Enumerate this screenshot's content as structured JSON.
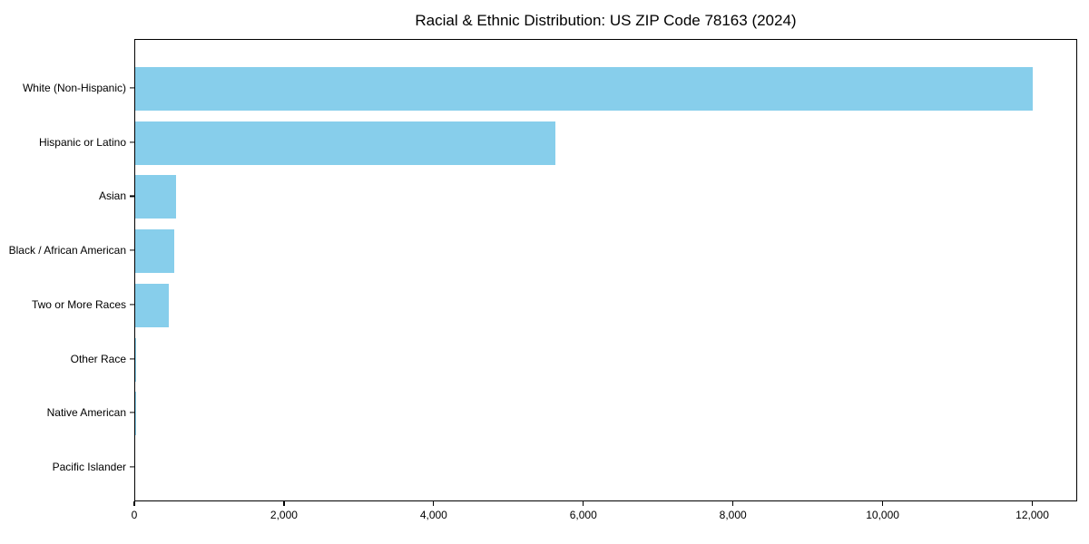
{
  "title": "Racial & Ethnic Distribution: US ZIP Code 78163 (2024)",
  "colors": {
    "bar": "#87CEEB",
    "axis": "#000000",
    "text": "#000000",
    "background": "#ffffff"
  },
  "chart_data": {
    "type": "bar",
    "orientation": "horizontal",
    "title": "Racial & Ethnic Distribution: US ZIP Code 78163 (2024)",
    "xlabel": "",
    "ylabel": "",
    "categories": [
      "White (Non-Hispanic)",
      "Hispanic or Latino",
      "Asian",
      "Black / African American",
      "Two or More Races",
      "Other Race",
      "Native American",
      "Pacific Islander"
    ],
    "values": [
      11990,
      5620,
      545,
      520,
      445,
      15,
      12,
      0
    ],
    "xlim": [
      0,
      12600
    ],
    "xticks": [
      0,
      2000,
      4000,
      6000,
      8000,
      10000,
      12000
    ],
    "xtick_labels": [
      "0",
      "2,000",
      "4,000",
      "6,000",
      "8,000",
      "10,000",
      "12,000"
    ],
    "bar_color": "#87CEEB",
    "grid": false,
    "legend": null
  }
}
